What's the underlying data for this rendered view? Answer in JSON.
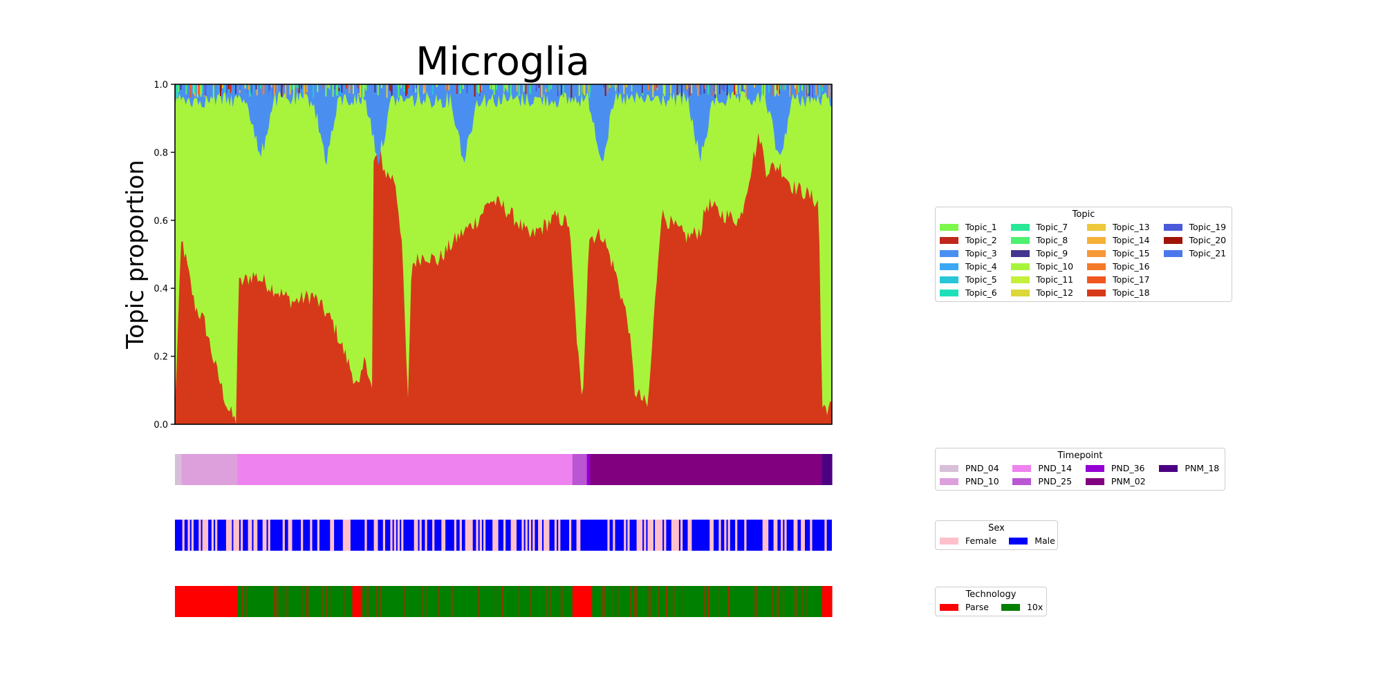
{
  "chart_data": {
    "type": "area",
    "title": "Microglia",
    "ylabel": "Topic proportion",
    "xlabel": "",
    "ylim": [
      0,
      1
    ],
    "yticks": [
      "0.0",
      "0.2",
      "0.4",
      "0.6",
      "0.8",
      "1.0"
    ],
    "grid": false,
    "topic_profile": [
      {
        "x": 0.0,
        "y": 0.05
      },
      {
        "x": 0.01,
        "y": 0.55
      },
      {
        "x": 0.02,
        "y": 0.45
      },
      {
        "x": 0.03,
        "y": 0.35
      },
      {
        "x": 0.045,
        "y": 0.3
      },
      {
        "x": 0.06,
        "y": 0.18
      },
      {
        "x": 0.08,
        "y": 0.05
      },
      {
        "x": 0.094,
        "y": 0.0
      },
      {
        "x": 0.096,
        "y": 0.41
      },
      {
        "x": 0.12,
        "y": 0.44
      },
      {
        "x": 0.15,
        "y": 0.4
      },
      {
        "x": 0.18,
        "y": 0.36
      },
      {
        "x": 0.21,
        "y": 0.38
      },
      {
        "x": 0.24,
        "y": 0.3
      },
      {
        "x": 0.26,
        "y": 0.2
      },
      {
        "x": 0.28,
        "y": 0.1
      },
      {
        "x": 0.29,
        "y": 0.2
      },
      {
        "x": 0.3,
        "y": 0.1
      },
      {
        "x": 0.298,
        "y": 0.25
      },
      {
        "x": 0.3,
        "y": 0.75
      },
      {
        "x": 0.31,
        "y": 0.81
      },
      {
        "x": 0.32,
        "y": 0.74
      },
      {
        "x": 0.335,
        "y": 0.72
      },
      {
        "x": 0.345,
        "y": 0.55
      },
      {
        "x": 0.355,
        "y": 0.05
      },
      {
        "x": 0.36,
        "y": 0.47
      },
      {
        "x": 0.38,
        "y": 0.5
      },
      {
        "x": 0.4,
        "y": 0.48
      },
      {
        "x": 0.43,
        "y": 0.55
      },
      {
        "x": 0.46,
        "y": 0.6
      },
      {
        "x": 0.48,
        "y": 0.66
      },
      {
        "x": 0.5,
        "y": 0.64
      },
      {
        "x": 0.52,
        "y": 0.6
      },
      {
        "x": 0.54,
        "y": 0.55
      },
      {
        "x": 0.56,
        "y": 0.58
      },
      {
        "x": 0.58,
        "y": 0.61
      },
      {
        "x": 0.6,
        "y": 0.59
      },
      {
        "x": 0.61,
        "y": 0.3
      },
      {
        "x": 0.62,
        "y": 0.05
      },
      {
        "x": 0.63,
        "y": 0.55
      },
      {
        "x": 0.65,
        "y": 0.56
      },
      {
        "x": 0.67,
        "y": 0.45
      },
      {
        "x": 0.69,
        "y": 0.3
      },
      {
        "x": 0.7,
        "y": 0.1
      },
      {
        "x": 0.72,
        "y": 0.05
      },
      {
        "x": 0.74,
        "y": 0.62
      },
      {
        "x": 0.76,
        "y": 0.58
      },
      {
        "x": 0.78,
        "y": 0.55
      },
      {
        "x": 0.8,
        "y": 0.57
      },
      {
        "x": 0.81,
        "y": 0.65
      },
      {
        "x": 0.83,
        "y": 0.62
      },
      {
        "x": 0.86,
        "y": 0.6
      },
      {
        "x": 0.88,
        "y": 0.78
      },
      {
        "x": 0.89,
        "y": 0.85
      },
      {
        "x": 0.9,
        "y": 0.75
      },
      {
        "x": 0.92,
        "y": 0.76
      },
      {
        "x": 0.94,
        "y": 0.7
      },
      {
        "x": 0.96,
        "y": 0.68
      },
      {
        "x": 0.98,
        "y": 0.65
      },
      {
        "x": 0.985,
        "y": 0.05
      },
      {
        "x": 1.0,
        "y": 0.05
      }
    ],
    "topic_legend": {
      "title": "Topic",
      "entries": [
        {
          "label": "Topic_1",
          "color": "#7cf74a"
        },
        {
          "label": "Topic_2",
          "color": "#c0281c"
        },
        {
          "label": "Topic_3",
          "color": "#4a8ff0"
        },
        {
          "label": "Topic_4",
          "color": "#3aa8f5"
        },
        {
          "label": "Topic_5",
          "color": "#28c6d8"
        },
        {
          "label": "Topic_6",
          "color": "#1ee0b8"
        },
        {
          "label": "Topic_7",
          "color": "#28e898"
        },
        {
          "label": "Topic_8",
          "color": "#4ef070"
        },
        {
          "label": "Topic_9",
          "color": "#44358f"
        },
        {
          "label": "Topic_10",
          "color": "#a8f43c"
        },
        {
          "label": "Topic_11",
          "color": "#c4f03a"
        },
        {
          "label": "Topic_12",
          "color": "#dcd83a"
        },
        {
          "label": "Topic_13",
          "color": "#ecc83a"
        },
        {
          "label": "Topic_14",
          "color": "#f5b038"
        },
        {
          "label": "Topic_15",
          "color": "#f59838"
        },
        {
          "label": "Topic_16",
          "color": "#f57a28"
        },
        {
          "label": "Topic_17",
          "color": "#f0561e"
        },
        {
          "label": "Topic_18",
          "color": "#d6391a"
        },
        {
          "label": "Topic_19",
          "color": "#4a5ad8"
        },
        {
          "label": "Topic_20",
          "color": "#a01408"
        },
        {
          "label": "Topic_21",
          "color": "#4a78ec"
        }
      ]
    },
    "timepoint_track": {
      "segments": [
        {
          "label": "PND_04",
          "start": 0.0,
          "end": 0.01
        },
        {
          "label": "PND_10",
          "start": 0.01,
          "end": 0.095
        },
        {
          "label": "PND_14",
          "start": 0.095,
          "end": 0.605
        },
        {
          "label": "PND_25",
          "start": 0.605,
          "end": 0.627
        },
        {
          "label": "PND_36",
          "start": 0.627,
          "end": 0.632
        },
        {
          "label": "PNM_02",
          "start": 0.632,
          "end": 0.985
        },
        {
          "label": "PNM_18",
          "start": 0.985,
          "end": 1.0
        }
      ]
    },
    "timepoint_legend": {
      "title": "Timepoint",
      "entries": [
        {
          "label": "PND_04",
          "color": "#d8bfd8"
        },
        {
          "label": "PND_10",
          "color": "#dda0dd"
        },
        {
          "label": "PND_14",
          "color": "#ee82ee"
        },
        {
          "label": "PND_25",
          "color": "#ba55d3"
        },
        {
          "label": "PND_36",
          "color": "#9400d3"
        },
        {
          "label": "PNM_02",
          "color": "#800080"
        },
        {
          "label": "PNM_18",
          "color": "#4b0082"
        }
      ]
    },
    "sex_track": {
      "female_fraction": 0.35
    },
    "sex_legend": {
      "title": "Sex",
      "entries": [
        {
          "label": "Female",
          "color": "#ffc0cb"
        },
        {
          "label": "Male",
          "color": "#0000ff"
        }
      ]
    },
    "technology_track": {
      "segments": [
        {
          "label": "Parse",
          "start": 0.0,
          "end": 0.095
        },
        {
          "label": "10x",
          "start": 0.095,
          "end": 0.27
        },
        {
          "label": "Parse",
          "start": 0.27,
          "end": 0.283
        },
        {
          "label": "10x",
          "start": 0.283,
          "end": 0.605
        },
        {
          "label": "Parse",
          "start": 0.605,
          "end": 0.635
        },
        {
          "label": "10x",
          "start": 0.635,
          "end": 0.985
        },
        {
          "label": "Parse",
          "start": 0.985,
          "end": 1.0
        }
      ]
    },
    "technology_legend": {
      "title": "Technology",
      "entries": [
        {
          "label": "Parse",
          "color": "#ff0000"
        },
        {
          "label": "10x",
          "color": "#008000"
        }
      ]
    }
  }
}
